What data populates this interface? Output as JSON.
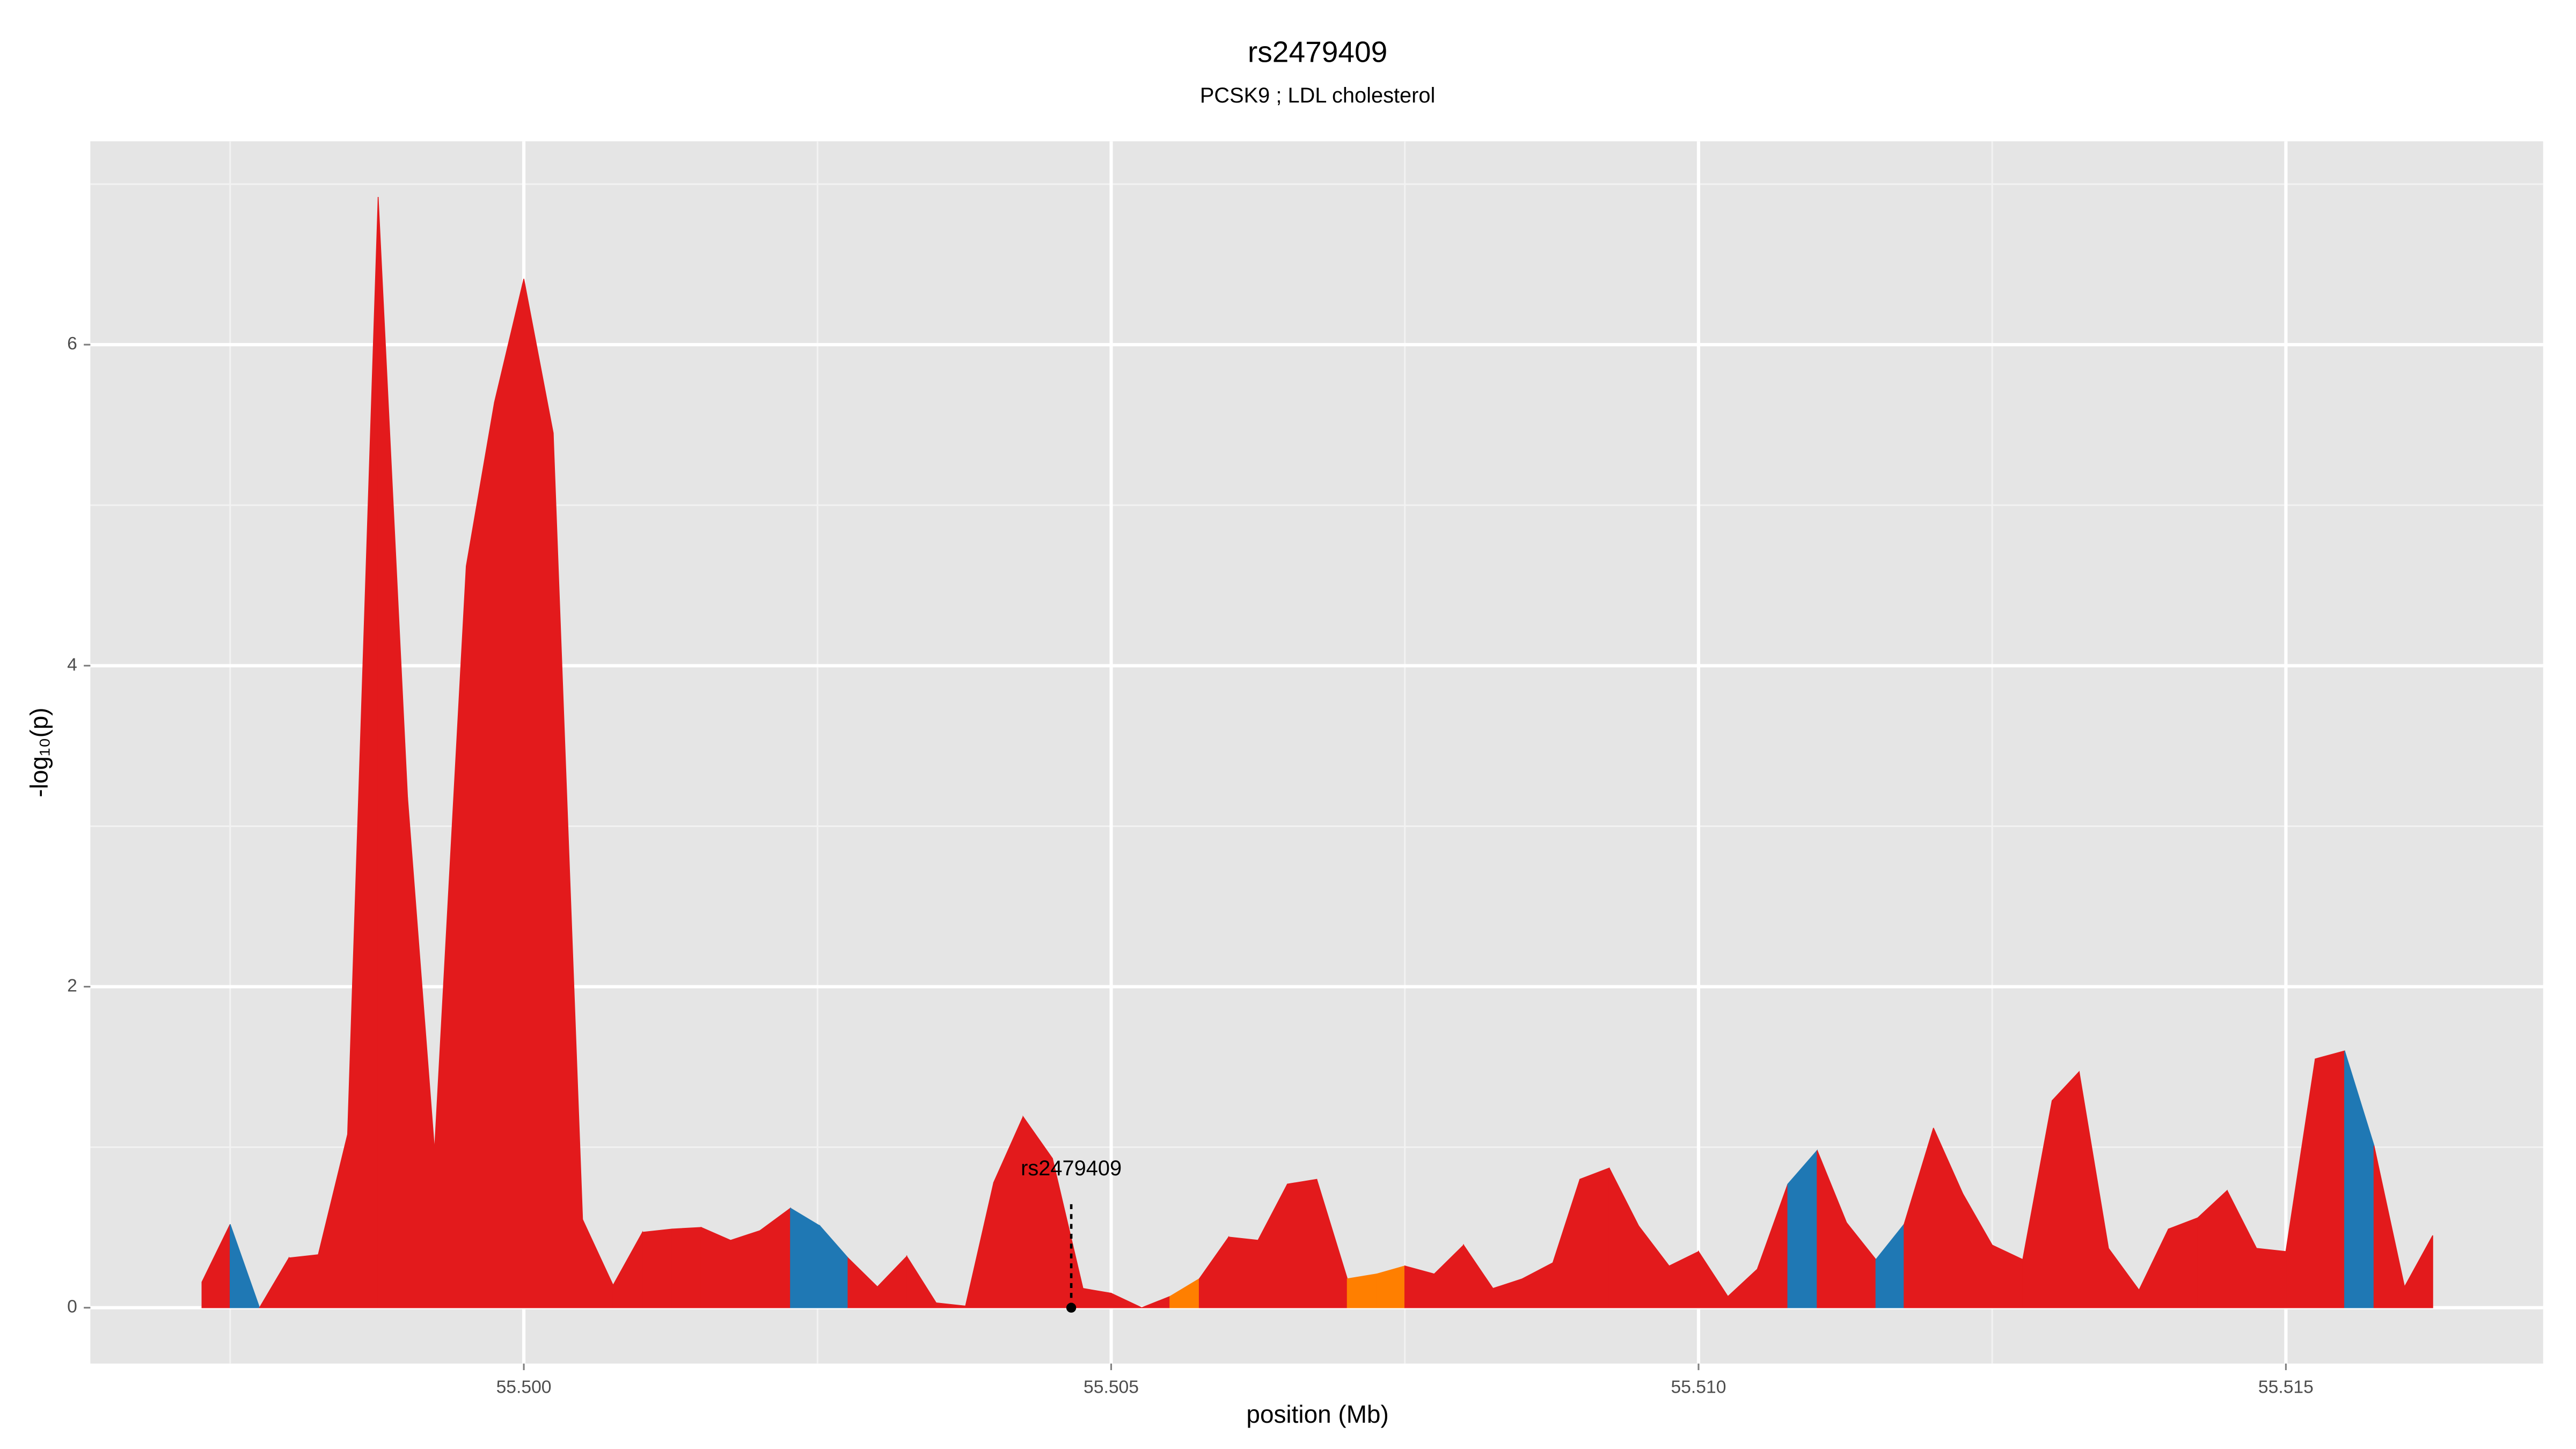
{
  "chart_data": {
    "type": "area",
    "title": "rs2479409",
    "subtitle": "PCSK9 ; LDL cholesterol",
    "x_label": "position (Mb)",
    "y_label": "-log₁₀(p)",
    "x": [
      55.49726,
      55.4975,
      55.49775,
      55.498,
      55.49825,
      55.4985,
      55.49876,
      55.49901,
      55.49924,
      55.49951,
      55.49975,
      55.5,
      55.50025,
      55.5005,
      55.50076,
      55.50101,
      55.50126,
      55.50151,
      55.50176,
      55.50201,
      55.50227,
      55.50252,
      55.50276,
      55.50301,
      55.50326,
      55.50351,
      55.50376,
      55.504,
      55.50425,
      55.5045,
      55.50476,
      55.505,
      55.50526,
      55.5055,
      55.50575,
      55.506,
      55.50625,
      55.5065,
      55.50675,
      55.50701,
      55.50726,
      55.5075,
      55.50775,
      55.508,
      55.50825,
      55.5085,
      55.50876,
      55.50899,
      55.50924,
      55.50949,
      55.50975,
      55.51,
      55.51025,
      55.5105,
      55.51076,
      55.51101,
      55.51126,
      55.51151,
      55.51175,
      55.512,
      55.51225,
      55.5125,
      55.51276,
      55.51301,
      55.51324,
      55.51349,
      55.51375,
      55.514,
      55.51425,
      55.5145,
      55.51475,
      55.515,
      55.51525,
      55.5155,
      55.51575,
      55.51601,
      55.51625
    ],
    "values": [
      0.16,
      0.52,
      0.0,
      0.31,
      0.33,
      1.08,
      6.92,
      3.18,
      0.98,
      4.62,
      5.64,
      6.41,
      5.45,
      0.55,
      0.14,
      0.47,
      0.49,
      0.5,
      0.42,
      0.48,
      0.62,
      0.51,
      0.31,
      0.13,
      0.32,
      0.03,
      0.01,
      0.78,
      1.19,
      0.93,
      0.12,
      0.09,
      0.0,
      0.07,
      0.18,
      0.44,
      0.42,
      0.77,
      0.8,
      0.18,
      0.21,
      0.26,
      0.21,
      0.39,
      0.12,
      0.18,
      0.28,
      0.8,
      0.87,
      0.51,
      0.26,
      0.35,
      0.07,
      0.24,
      0.77,
      0.98,
      0.53,
      0.3,
      0.52,
      1.12,
      0.71,
      0.39,
      0.3,
      1.29,
      1.47,
      0.37,
      0.11,
      0.49,
      0.56,
      0.73,
      0.37,
      0.35,
      1.55,
      1.6,
      1.01,
      0.13,
      0.45
    ],
    "segment_colors": [
      "#e31a1c",
      "#1f78b4",
      "#e31a1c",
      "#e31a1c",
      "#e31a1c",
      "#e31a1c",
      "#e31a1c",
      "#e31a1c",
      "#e31a1c",
      "#e31a1c",
      "#e31a1c",
      "#e31a1c",
      "#e31a1c",
      "#e31a1c",
      "#e31a1c",
      "#e31a1c",
      "#e31a1c",
      "#e31a1c",
      "#e31a1c",
      "#e31a1c",
      "#1f78b4",
      "#1f78b4",
      "#e31a1c",
      "#e31a1c",
      "#e31a1c",
      "#e31a1c",
      "#e31a1c",
      "#e31a1c",
      "#e31a1c",
      "#e31a1c",
      "#e31a1c",
      "#e31a1c",
      "#e31a1c",
      "#ff7f00",
      "#e31a1c",
      "#e31a1c",
      "#e31a1c",
      "#e31a1c",
      "#e31a1c",
      "#ff7f00",
      "#ff7f00",
      "#e31a1c",
      "#e31a1c",
      "#e31a1c",
      "#e31a1c",
      "#e31a1c",
      "#e31a1c",
      "#e31a1c",
      "#e31a1c",
      "#e31a1c",
      "#e31a1c",
      "#e31a1c",
      "#e31a1c",
      "#e31a1c",
      "#1f78b4",
      "#e31a1c",
      "#e31a1c",
      "#1f78b4",
      "#e31a1c",
      "#e31a1c",
      "#e31a1c",
      "#e31a1c",
      "#e31a1c",
      "#e31a1c",
      "#e31a1c",
      "#e31a1c",
      "#e31a1c",
      "#e31a1c",
      "#e31a1c",
      "#e31a1c",
      "#e31a1c",
      "#e31a1c",
      "#e31a1c",
      "#1f78b4",
      "#e31a1c",
      "#e31a1c"
    ],
    "annotation": {
      "text": "rs2479409",
      "x": 55.50466,
      "y": 0
    },
    "xlim": [
      55.49631,
      55.51719
    ],
    "ylim": [
      -0.348,
      7.267
    ],
    "xticks": [
      {
        "value": 55.5,
        "label": "55.500"
      },
      {
        "value": 55.505,
        "label": "55.505"
      },
      {
        "value": 55.51,
        "label": "55.510"
      },
      {
        "value": 55.515,
        "label": "55.515"
      }
    ],
    "minor_xticks": [
      55.4975,
      55.5025,
      55.5075,
      55.5125
    ],
    "yticks": [
      0,
      2,
      4,
      6
    ],
    "minor_yticks": [
      1,
      3,
      5,
      7
    ],
    "grid": true
  }
}
